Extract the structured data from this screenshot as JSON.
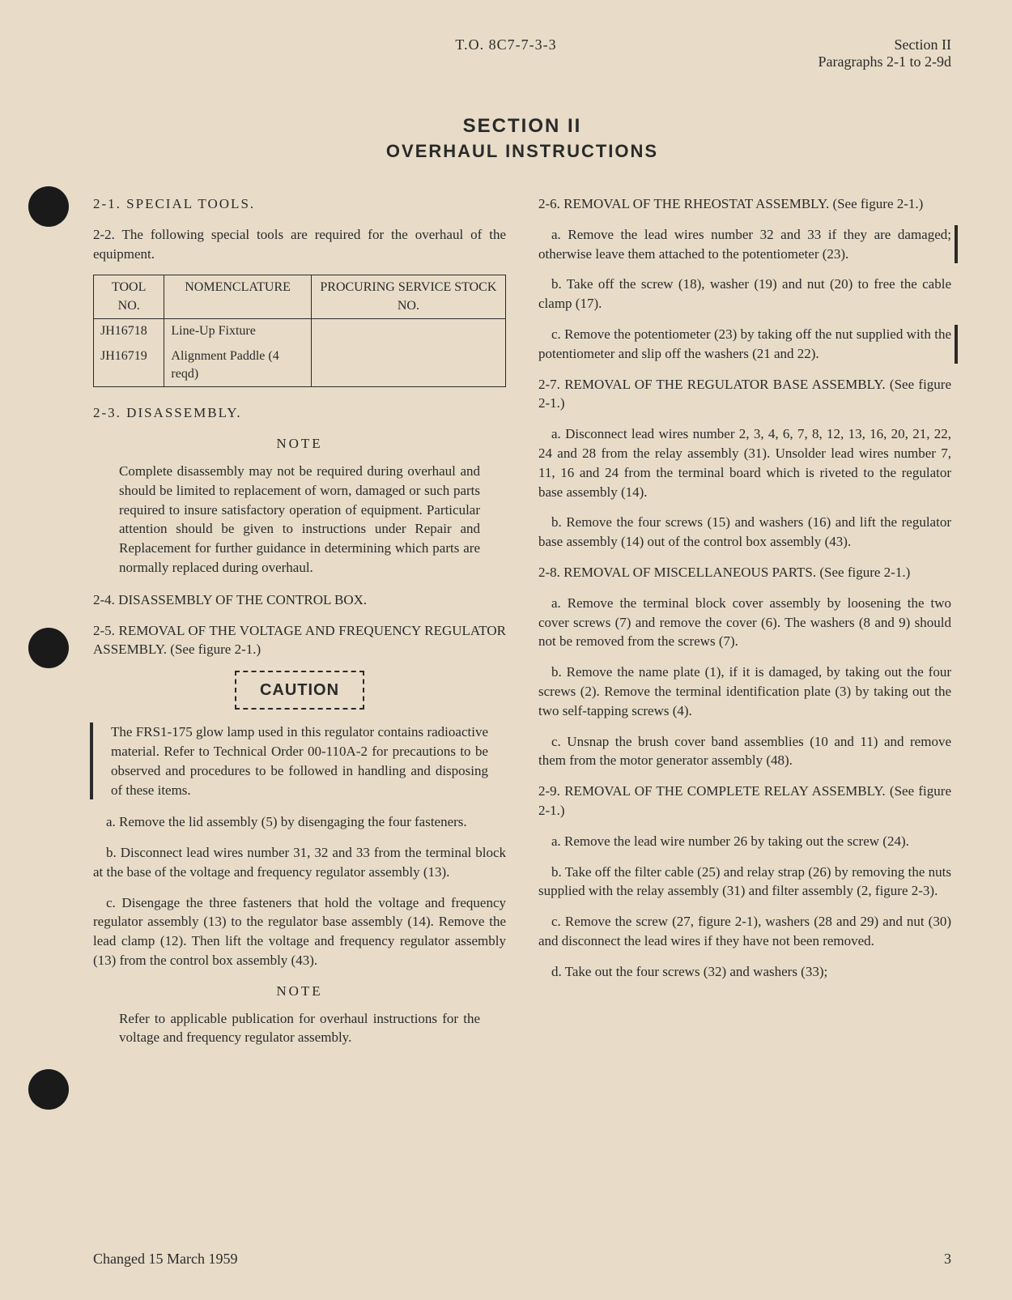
{
  "header": {
    "to_number": "T.O. 8C7-7-3-3",
    "section": "Section II",
    "paragraphs": "Paragraphs 2-1 to 2-9d"
  },
  "title": {
    "section": "SECTION II",
    "subtitle": "OVERHAUL INSTRUCTIONS"
  },
  "left_col": {
    "h_2_1": "2-1. SPECIAL TOOLS.",
    "p_2_2": "2-2. The following special tools are required for the overhaul of the equipment.",
    "table": {
      "headers": [
        "TOOL NO.",
        "NOMENCLATURE",
        "PROCURING SERVICE STOCK NO."
      ],
      "row1": [
        "JH16718",
        "Line-Up Fixture",
        ""
      ],
      "row2": [
        "JH16719",
        "Alignment Paddle (4 reqd)",
        ""
      ]
    },
    "h_2_3": "2-3. DISASSEMBLY.",
    "note_label": "NOTE",
    "note_body": "Complete disassembly may not be required during overhaul and should be limited to replacement of worn, damaged or such parts required to insure satisfactory operation of equipment. Particular attention should be given to instructions under Repair and Replacement for further guidance in determining which parts are normally replaced during overhaul.",
    "h_2_4": "2-4. DISASSEMBLY OF THE CONTROL BOX.",
    "h_2_5": "2-5. REMOVAL OF THE VOLTAGE AND FREQUENCY REGULATOR ASSEMBLY. (See figure 2-1.)",
    "caution": "CAUTION",
    "caution_body": "The FRS1-175 glow lamp used in this regulator contains radioactive material. Refer to Technical Order 00-110A-2 for precautions to be observed and procedures to be followed in handling and disposing of these items.",
    "p_a": "a. Remove the lid assembly (5) by disengaging the four fasteners.",
    "p_b": "b. Disconnect lead wires number 31, 32 and 33 from the terminal block at the base of the voltage and frequency regulator assembly (13).",
    "p_c": "c. Disengage the three fasteners that hold the voltage and frequency regulator assembly (13) to the regulator base assembly (14). Remove the lead clamp (12). Then lift the voltage and frequency regulator assembly (13) from the control box assembly (43).",
    "note2_label": "NOTE",
    "note2_body": "Refer to applicable publication for overhaul instructions for the voltage and frequency regulator assembly."
  },
  "right_col": {
    "h_2_6": "2-6. REMOVAL OF THE RHEOSTAT ASSEMBLY. (See figure 2-1.)",
    "p_2_6_a": "a. Remove the lead wires number 32 and 33 if they are damaged; otherwise leave them attached to the potentiometer (23).",
    "p_2_6_b": "b. Take off the screw (18), washer (19) and nut (20) to free the cable clamp (17).",
    "p_2_6_c": "c. Remove the potentiometer (23) by taking off the nut supplied with the potentiometer and slip off the washers (21 and 22).",
    "h_2_7": "2-7. REMOVAL OF THE REGULATOR BASE ASSEMBLY. (See figure 2-1.)",
    "p_2_7_a": "a. Disconnect lead wires number 2, 3, 4, 6, 7, 8, 12, 13, 16, 20, 21, 22, 24 and 28 from the relay assembly (31). Unsolder lead wires number 7, 11, 16 and 24 from the terminal board which is riveted to the regulator base assembly (14).",
    "p_2_7_b": "b. Remove the four screws (15) and washers (16) and lift the regulator base assembly (14) out of the control box assembly (43).",
    "h_2_8": "2-8. REMOVAL OF MISCELLANEOUS PARTS. (See figure 2-1.)",
    "p_2_8_a": "a. Remove the terminal block cover assembly by loosening the two cover screws (7) and remove the cover (6). The washers (8 and 9) should not be removed from the screws (7).",
    "p_2_8_b": "b. Remove the name plate (1), if it is damaged, by taking out the four screws (2). Remove the terminal identification plate (3) by taking out the two self-tapping screws (4).",
    "p_2_8_c": "c. Unsnap the brush cover band assemblies (10 and 11) and remove them from the motor generator assembly (48).",
    "h_2_9": "2-9. REMOVAL OF THE COMPLETE RELAY ASSEMBLY. (See figure 2-1.)",
    "p_2_9_a": "a. Remove the lead wire number 26 by taking out the screw (24).",
    "p_2_9_b": "b. Take off the filter cable (25) and relay strap (26) by removing the nuts supplied with the relay assembly (31) and filter assembly (2, figure 2-3).",
    "p_2_9_c": "c. Remove the screw (27, figure 2-1), washers (28 and 29) and nut (30) and disconnect the lead wires if they have not been removed.",
    "p_2_9_d": "d. Take out the four screws (32) and washers (33);"
  },
  "footer": {
    "changed": "Changed 15 March 1959",
    "page": "3"
  },
  "colors": {
    "background": "#e8dcc8",
    "text": "#2a2a2a"
  }
}
